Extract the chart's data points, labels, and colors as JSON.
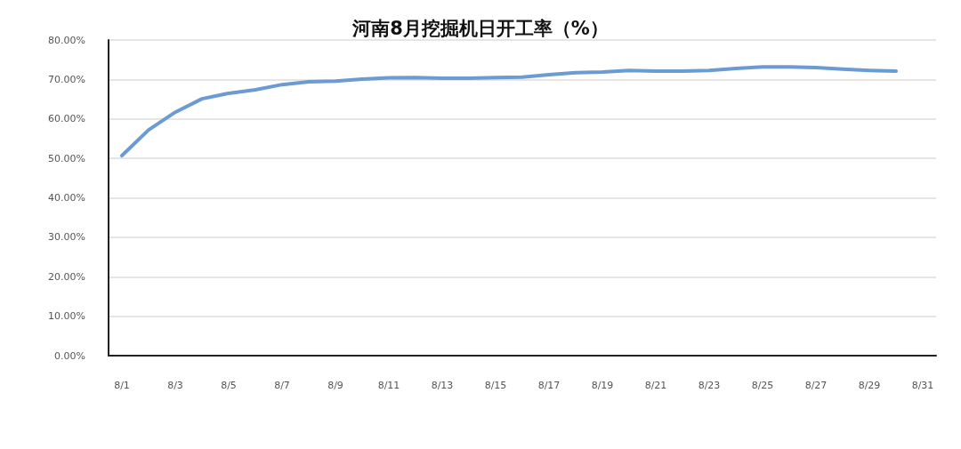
{
  "chart_data": {
    "type": "line",
    "title": "河南8月挖掘机日开工率（%）",
    "categories": [
      "8/1",
      null,
      "8/3",
      null,
      "8/5",
      null,
      "8/7",
      null,
      "8/9",
      null,
      "8/11",
      null,
      "8/13",
      null,
      "8/15",
      null,
      "8/17",
      null,
      "8/19",
      null,
      "8/21",
      null,
      "8/23",
      null,
      "8/25",
      null,
      "8/27",
      null,
      "8/29",
      null,
      "8/31"
    ],
    "series": [
      {
        "color": "#6a9bd3",
        "values": [
          50.7,
          57.2,
          61.7,
          65.1,
          66.5,
          67.4,
          68.7,
          69.4,
          69.6,
          70.1,
          70.4,
          70.5,
          70.3,
          70.3,
          70.5,
          70.6,
          71.2,
          71.7,
          71.9,
          72.3,
          72.1,
          72.1,
          72.3,
          72.8,
          73.2,
          73.2,
          73.0,
          72.6,
          72.3,
          72.1,
          null
        ]
      }
    ],
    "ylim": [
      0,
      80
    ],
    "yticks": [
      {
        "value": 0,
        "label": "0.00%"
      },
      {
        "value": 10,
        "label": "10.00%"
      },
      {
        "value": 20,
        "label": "20.00%"
      },
      {
        "value": 30,
        "label": "30.00%"
      },
      {
        "value": 40,
        "label": "40.00%"
      },
      {
        "value": 50,
        "label": "50.00%"
      },
      {
        "value": 60,
        "label": "60.00%"
      },
      {
        "value": 70,
        "label": "70.00%"
      },
      {
        "value": 80,
        "label": "80.00%"
      }
    ],
    "grid": "y",
    "marker": "none",
    "line_style": "solid"
  }
}
